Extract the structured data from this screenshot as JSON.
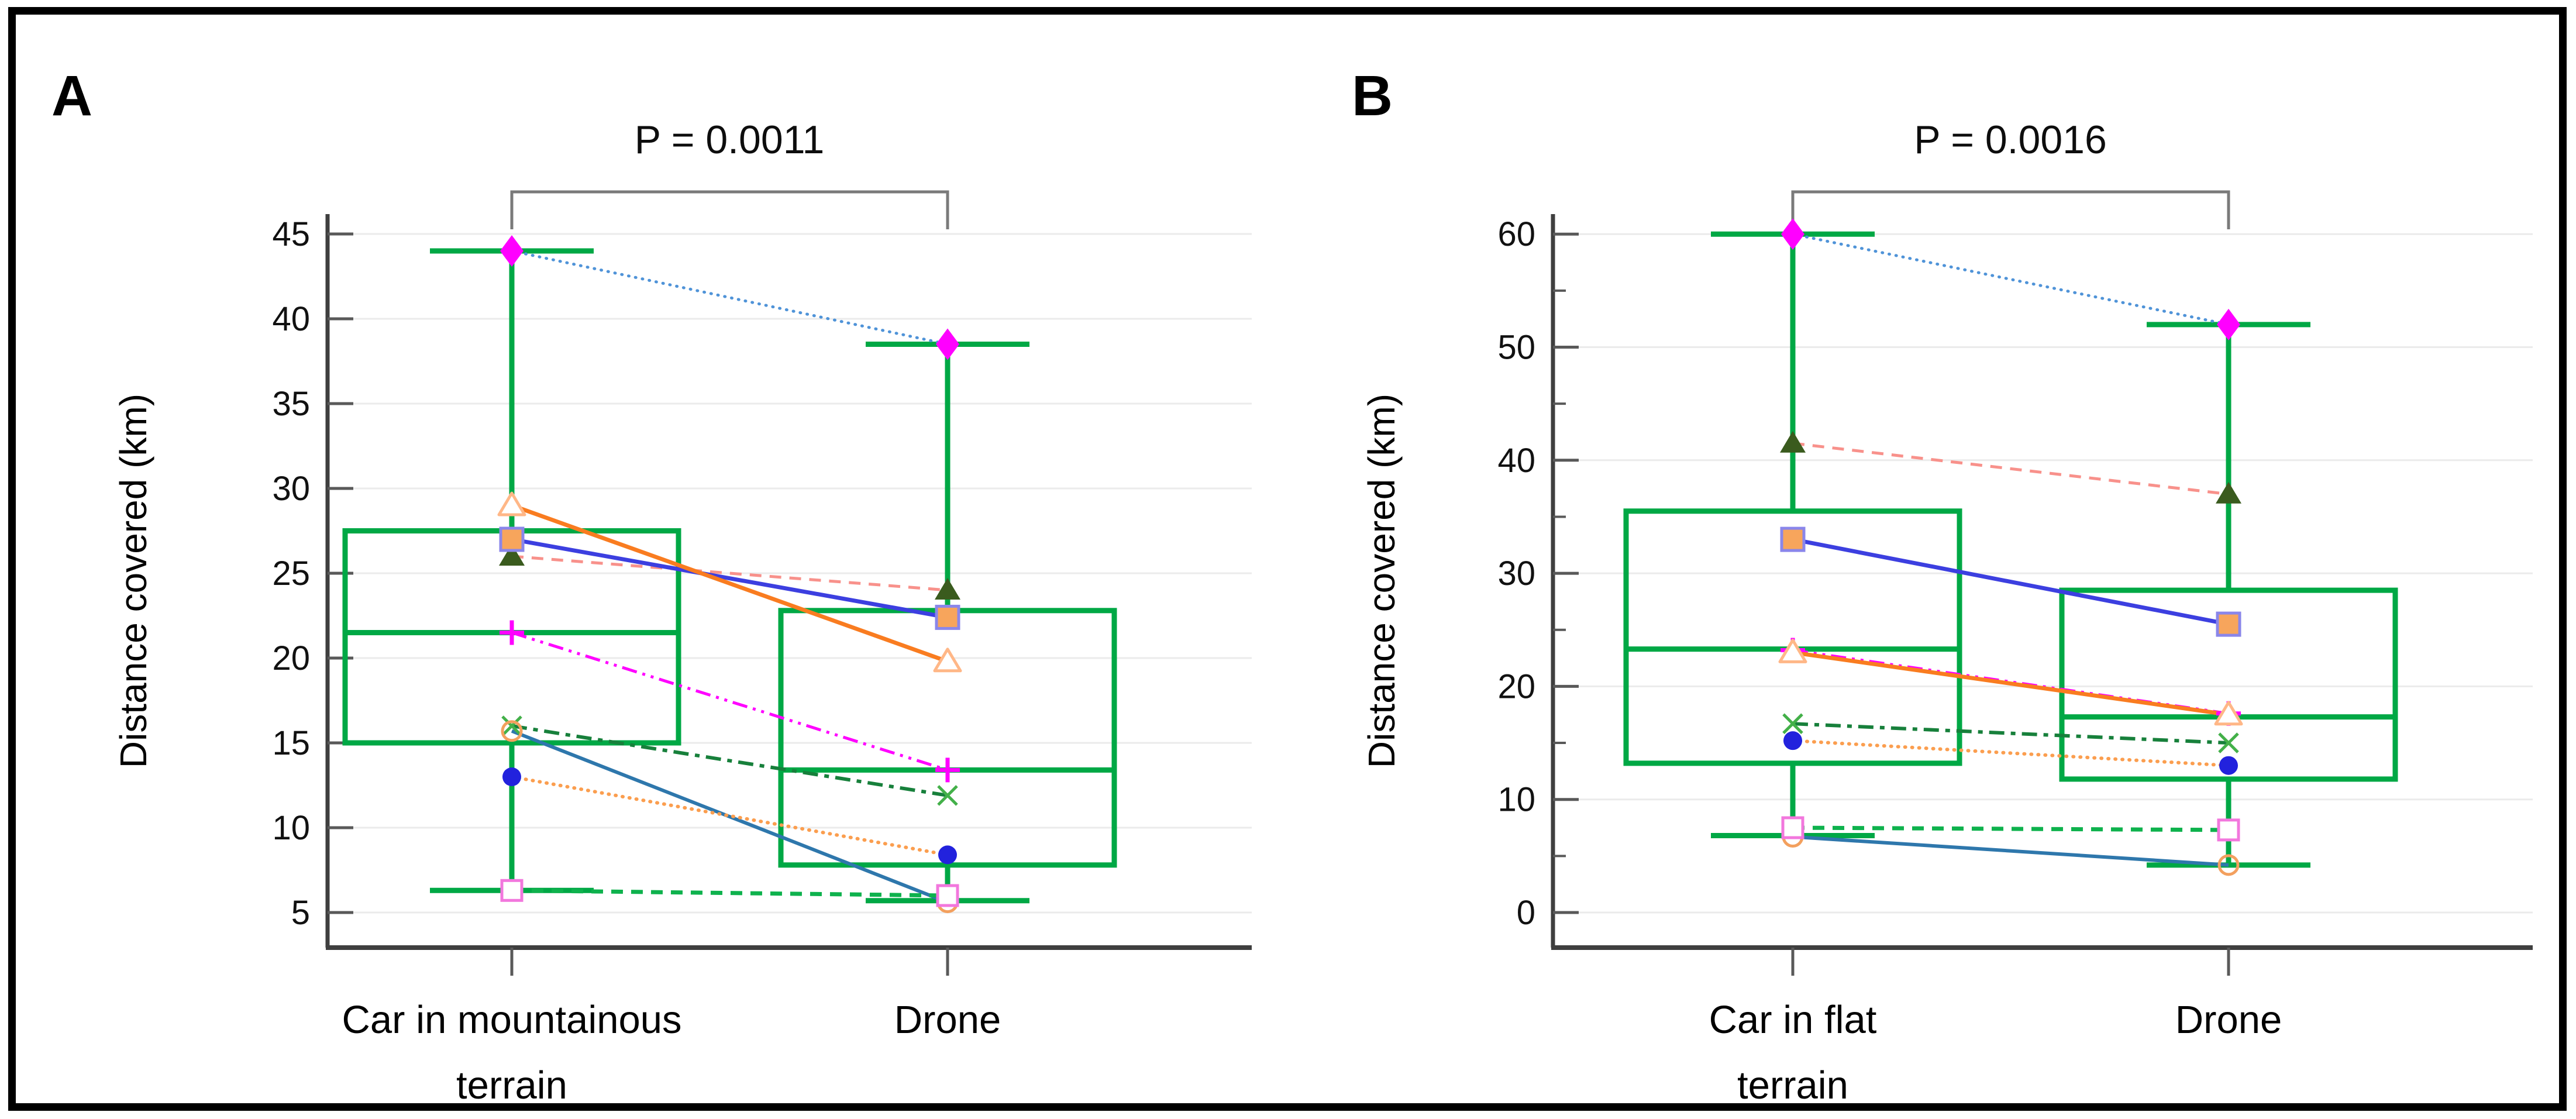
{
  "figure": {
    "background": "#ffffff",
    "border_color": "#000000"
  },
  "colors": {
    "box_green": "#00A845",
    "axis": "#3F3F3F",
    "grid": "#EBEBEB",
    "tick": "#595959",
    "tick_label": "#111111",
    "bracket": "#7A7A7A",
    "text": "#000000"
  },
  "marker_styles": {
    "filled-diamond": {
      "fill": "#FF00FF",
      "stroke": "none"
    },
    "filled-triangle": {
      "fill": "#3A5B1E",
      "stroke": "none"
    },
    "filled-square": {
      "fill": "#F7A55C",
      "stroke": "#8A86EA"
    },
    "plus": {
      "stroke": "#FF00FF"
    },
    "open-triangle": {
      "fill": "#FFFFFF",
      "stroke": "#FFB787"
    },
    "x-mark": {
      "stroke": "#43B049"
    },
    "open-circle": {
      "fill": "none",
      "stroke": "#F3A05E"
    },
    "filled-circle": {
      "fill": "#2222DD",
      "stroke": "none"
    },
    "open-square": {
      "fill": "#FFFFFF",
      "stroke": "#F277DD"
    }
  },
  "line_styles": {
    "solid": "",
    "dashed": "20 14",
    "dotted": "1 11",
    "dashdot": "26 11 8 11",
    "dashdotdot": "26 10 5 10 5 10"
  },
  "chart_data": [
    {
      "type": "paired-boxplot",
      "panel": "A",
      "p_value_text": "P = 0.0011",
      "ylabel": "Distance covered (km)",
      "ylim": [
        5,
        45
      ],
      "grid": true,
      "yticks": [
        5,
        10,
        15,
        20,
        25,
        30,
        35,
        40,
        45
      ],
      "minor_yticks": [],
      "categories": [
        "Car in mountainous terrain",
        "Drone"
      ],
      "category_label_lines": [
        [
          "Car in mountainous",
          "terrain"
        ],
        [
          "Drone"
        ]
      ],
      "boxes": [
        {
          "category": "Car in mountainous terrain",
          "whisker_low": 6.3,
          "q1": 15,
          "median": 21.5,
          "q3": 27.5,
          "whisker_high": 44
        },
        {
          "category": "Drone",
          "whisker_low": 5.7,
          "q1": 7.8,
          "median": 13.4,
          "q3": 22.8,
          "whisker_high": 38.5
        }
      ],
      "pairs": [
        {
          "id": "subject-diamond",
          "marker": "filled-diamond",
          "line": {
            "style": "dotted",
            "color": "#4F93D8",
            "width": 5
          },
          "values": [
            44,
            38.5
          ]
        },
        {
          "id": "subject-dark-triangle",
          "marker": "filled-triangle",
          "line": {
            "style": "dashed",
            "color": "#F8918B",
            "width": 5
          },
          "values": [
            26,
            24
          ]
        },
        {
          "id": "subject-orange-square",
          "marker": "filled-square",
          "line": {
            "style": "solid",
            "color": "#3C3FE0",
            "width": 7
          },
          "values": [
            27,
            22.4
          ]
        },
        {
          "id": "subject-plus",
          "marker": "plus",
          "line": {
            "style": "dashdotdot",
            "color": "#FF00FF",
            "width": 5
          },
          "values": [
            21.5,
            13.4
          ]
        },
        {
          "id": "subject-open-triangle",
          "marker": "open-triangle",
          "line": {
            "style": "solid",
            "color": "#F97C20",
            "width": 7
          },
          "values": [
            29,
            19.8
          ]
        },
        {
          "id": "subject-x",
          "marker": "x-mark",
          "line": {
            "style": "dashdot",
            "color": "#17803B",
            "width": 6
          },
          "values": [
            16,
            11.9
          ]
        },
        {
          "id": "subject-open-circle",
          "marker": "open-circle",
          "line": {
            "style": "solid",
            "color": "#2E77AC",
            "width": 6
          },
          "values": [
            15.7,
            5.6
          ]
        },
        {
          "id": "subject-blue-circle",
          "marker": "filled-circle",
          "line": {
            "style": "dotted",
            "color": "#FB9E4F",
            "width": 6
          },
          "values": [
            13,
            8.4
          ]
        },
        {
          "id": "subject-open-square",
          "marker": "open-square",
          "line": {
            "style": "dashed",
            "color": "#0EB24D",
            "width": 7
          },
          "values": [
            6.3,
            6.0
          ]
        }
      ]
    },
    {
      "type": "paired-boxplot",
      "panel": "B",
      "p_value_text": "P = 0.0016",
      "ylabel": "Distance covered (km)",
      "ylim": [
        0,
        60
      ],
      "grid": true,
      "yticks": [
        0,
        10,
        20,
        30,
        40,
        50,
        60
      ],
      "minor_yticks": [
        5,
        15,
        25,
        35,
        45,
        55
      ],
      "categories": [
        "Car in flat terrain",
        "Drone"
      ],
      "category_label_lines": [
        [
          "Car in flat",
          "terrain"
        ],
        [
          "Drone"
        ]
      ],
      "boxes": [
        {
          "category": "Car in flat terrain",
          "whisker_low": 6.8,
          "q1": 13.2,
          "median": 23.3,
          "q3": 35.5,
          "whisker_high": 60
        },
        {
          "category": "Drone",
          "whisker_low": 4.2,
          "q1": 11.8,
          "median": 17.3,
          "q3": 28.5,
          "whisker_high": 52
        }
      ],
      "pairs": [
        {
          "id": "subject-diamond",
          "marker": "filled-diamond",
          "line": {
            "style": "dotted",
            "color": "#4F93D8",
            "width": 5
          },
          "values": [
            60,
            52
          ]
        },
        {
          "id": "subject-dark-triangle",
          "marker": "filled-triangle",
          "line": {
            "style": "dashed",
            "color": "#F8918B",
            "width": 5
          },
          "values": [
            41.5,
            37
          ]
        },
        {
          "id": "subject-orange-square",
          "marker": "filled-square",
          "line": {
            "style": "solid",
            "color": "#3C3FE0",
            "width": 7
          },
          "values": [
            33,
            25.5
          ]
        },
        {
          "id": "subject-plus",
          "marker": "plus",
          "line": {
            "style": "dashdotdot",
            "color": "#FF00FF",
            "width": 5
          },
          "values": [
            23.2,
            17.6
          ]
        },
        {
          "id": "subject-open-triangle",
          "marker": "open-triangle",
          "line": {
            "style": "solid",
            "color": "#F97C20",
            "width": 7
          },
          "values": [
            23,
            17.5
          ]
        },
        {
          "id": "subject-x",
          "marker": "x-mark",
          "line": {
            "style": "dashdot",
            "color": "#17803B",
            "width": 6
          },
          "values": [
            16.7,
            15
          ]
        },
        {
          "id": "subject-open-circle",
          "marker": "open-circle",
          "line": {
            "style": "solid",
            "color": "#2E77AC",
            "width": 6
          },
          "values": [
            6.7,
            4.2
          ]
        },
        {
          "id": "subject-blue-circle",
          "marker": "filled-circle",
          "line": {
            "style": "dotted",
            "color": "#FB9E4F",
            "width": 6
          },
          "values": [
            15.2,
            13
          ]
        },
        {
          "id": "subject-open-square",
          "marker": "open-square",
          "line": {
            "style": "dashed",
            "color": "#0EB24D",
            "width": 7
          },
          "values": [
            7.5,
            7.3
          ]
        }
      ]
    }
  ]
}
